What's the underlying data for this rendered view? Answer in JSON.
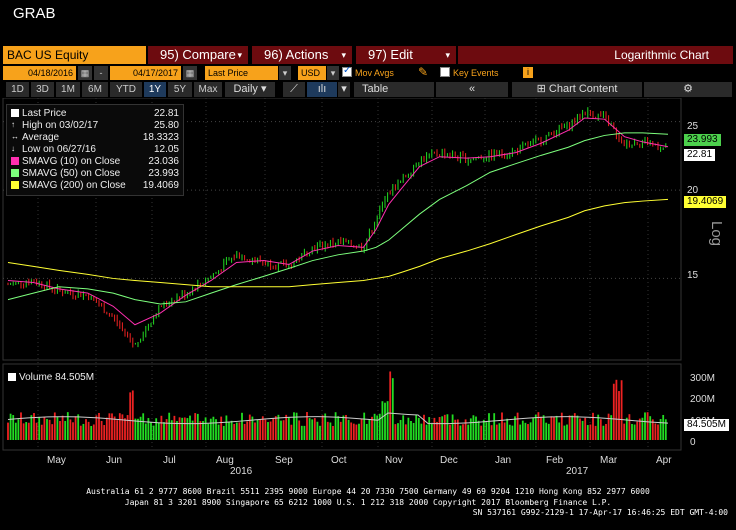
{
  "window_title": "GRAB",
  "toolbar": {
    "security": "BAC US Equity",
    "compare": "95) Compare",
    "actions": "96) Actions",
    "edit": "97) Edit",
    "chart_mode": "Logarithmic Chart"
  },
  "settings": {
    "start_date": "04/18/2016",
    "end_date": "04/17/2017",
    "field": "Last Price",
    "currency": "USD",
    "mov_avgs_label": "Mov Avgs",
    "mov_avgs_checked": true,
    "key_events_label": "Key Events",
    "key_events_checked": false,
    "info_icon": "i"
  },
  "periods": [
    "1D",
    "3D",
    "1M",
    "6M",
    "YTD",
    "1Y",
    "5Y",
    "Max"
  ],
  "selected_period": "1Y",
  "frequency": "Daily",
  "table_label": "Table",
  "chart_content_label": "Chart Content",
  "legend": [
    {
      "label": "Last Price",
      "value": "22.81",
      "color": "#ffffff"
    },
    {
      "label": "High on 03/02/17",
      "value": "25.80",
      "color": ""
    },
    {
      "label": "Average",
      "value": "18.3323",
      "color": ""
    },
    {
      "label": "Low on 06/27/16",
      "value": "12.05",
      "color": ""
    },
    {
      "label": "SMAVG (10) on Close",
      "value": "23.036",
      "color": "#ff2fb0"
    },
    {
      "label": "SMAVG (50) on Close",
      "value": "23.993",
      "color": "#7dff7d"
    },
    {
      "label": "SMAVG (200) on Close",
      "value": "19.4069",
      "color": "#ffff33"
    }
  ],
  "price_tags": {
    "sma50": "23.993",
    "last": "22.81",
    "sma200": "19.4069"
  },
  "price_axis": {
    "ticks": [
      "25",
      "20",
      "15"
    ],
    "scale_label": "Log"
  },
  "volume": {
    "legend_label": "Volume 84.505M",
    "ticks": [
      "300M",
      "200M",
      "100M",
      "0"
    ],
    "last_tag": "84.505M"
  },
  "x_axis": {
    "months": [
      "May",
      "Jun",
      "Jul",
      "Aug",
      "Sep",
      "Oct",
      "Nov",
      "Dec",
      "Jan",
      "Feb",
      "Mar",
      "Apr"
    ],
    "years": [
      "2016",
      "2017"
    ]
  },
  "footer": {
    "line1": "Australia 61 2 9777 8600 Brazil 5511 2395 9000 Europe 44 20 7330 7500 Germany 49 69 9204 1210 Hong Kong 852 2977 6000",
    "line2": "Japan 81 3 3201 8900      Singapore 65 6212 1000      U.S. 1 212 318 2000          Copyright 2017 Bloomberg Finance L.P.",
    "line3": "SN 537161 G992-2129-1 17-Apr-17 16:46:25 EDT  GMT-4:00"
  },
  "colors": {
    "accent": "#f7a21b",
    "menu_red": "#6d0b0f",
    "sma10": "#ff2fb0",
    "sma50": "#7dff7d",
    "sma200": "#ffff33",
    "up": "#22dd22",
    "down": "#ee2222"
  },
  "chart_data": {
    "type": "line",
    "title": "",
    "scale": "log",
    "ylim": [
      11.5,
      27
    ],
    "dates": [
      "2016-04-18",
      "2016-05-02",
      "2016-05-16",
      "2016-06-01",
      "2016-06-15",
      "2016-06-27",
      "2016-07-11",
      "2016-07-25",
      "2016-08-08",
      "2016-08-22",
      "2016-09-06",
      "2016-09-20",
      "2016-10-03",
      "2016-10-17",
      "2016-10-31",
      "2016-11-07",
      "2016-11-14",
      "2016-11-21",
      "2016-12-01",
      "2016-12-12",
      "2016-12-27",
      "2017-01-09",
      "2017-01-23",
      "2017-02-06",
      "2017-02-21",
      "2017-03-02",
      "2017-03-13",
      "2017-03-24",
      "2017-04-03",
      "2017-04-17"
    ],
    "series": [
      {
        "name": "Last Price",
        "values": [
          14.7,
          14.9,
          14.4,
          14.2,
          13.2,
          12.05,
          13.7,
          14.3,
          15.1,
          16.2,
          15.8,
          15.6,
          16.6,
          16.9,
          16.6,
          18.2,
          19.8,
          20.6,
          22.1,
          22.6,
          22.1,
          22.4,
          22.7,
          23.6,
          24.7,
          25.8,
          25.3,
          23.2,
          23.5,
          22.81
        ]
      },
      {
        "name": "SMAVG (10) on Close",
        "values": [
          14.9,
          14.8,
          14.5,
          14.3,
          13.7,
          12.9,
          13.4,
          14.2,
          14.9,
          15.8,
          15.9,
          15.7,
          16.4,
          16.7,
          16.6,
          17.6,
          19.1,
          20.1,
          21.6,
          22.3,
          22.2,
          22.3,
          22.6,
          23.3,
          24.3,
          25.3,
          25.2,
          23.8,
          23.4,
          23.036
        ]
      },
      {
        "name": "SMAVG (50) on Close",
        "values": [
          14.0,
          14.3,
          14.6,
          14.5,
          14.3,
          14.0,
          13.8,
          13.9,
          14.3,
          14.7,
          15.1,
          15.5,
          15.9,
          16.2,
          16.4,
          16.6,
          17.0,
          17.6,
          18.5,
          19.4,
          20.3,
          21.2,
          21.8,
          22.4,
          23.0,
          23.5,
          23.9,
          24.1,
          24.1,
          23.993
        ]
      },
      {
        "name": "SMAVG (200) on Close",
        "values": [
          15.8,
          15.6,
          15.4,
          15.2,
          15.0,
          14.9,
          14.8,
          14.7,
          14.6,
          14.6,
          14.6,
          14.6,
          14.7,
          14.8,
          14.9,
          15.0,
          15.1,
          15.3,
          15.6,
          16.0,
          16.4,
          16.8,
          17.3,
          17.8,
          18.3,
          18.7,
          19.0,
          19.2,
          19.3,
          19.4069
        ]
      }
    ]
  }
}
